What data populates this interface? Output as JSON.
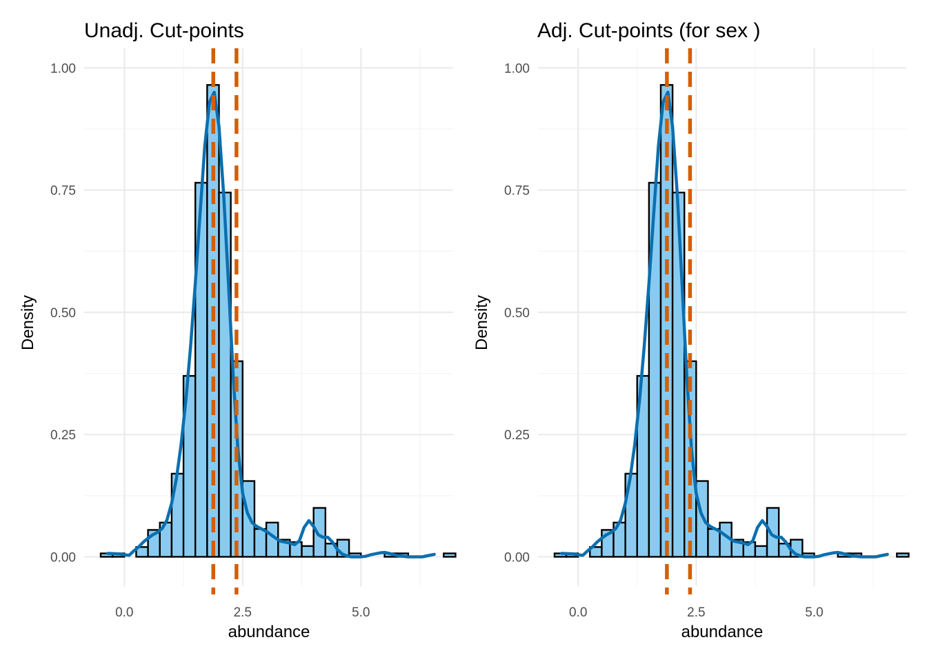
{
  "colors": {
    "bar_fill": "#89cbf0",
    "bar_stroke": "#000000",
    "density_line": "#0b6faf",
    "cut_line": "#d55e00",
    "grid": "#ebebeb"
  },
  "chart_data": [
    {
      "type": "histogram",
      "title": "Unadj. Cut-points",
      "xlabel": "abundance",
      "ylabel": "Density",
      "xlim": [
        -0.85,
        6.95
      ],
      "ylim": [
        -0.06,
        1.04
      ],
      "x_ticks": [
        0,
        2.5,
        5
      ],
      "x_tick_labels": [
        "0.0",
        "2.5",
        "5.0"
      ],
      "y_ticks": [
        0,
        0.25,
        0.5,
        0.75,
        1
      ],
      "y_tick_labels": [
        "0.00",
        "0.25",
        "0.50",
        "0.75",
        "1.00"
      ],
      "grid": true,
      "bins": {
        "width": 0.25,
        "start": -0.5,
        "densities": [
          0.007,
          0.007,
          0.0,
          0.02,
          0.055,
          0.07,
          0.17,
          0.37,
          0.765,
          0.965,
          0.745,
          0.4,
          0.155,
          0.057,
          0.07,
          0.035,
          0.03,
          0.022,
          0.1,
          0.027,
          0.035,
          0.007,
          0.0,
          0.0,
          0.007,
          0.007,
          0.0,
          0.0,
          0.0,
          0.007
        ]
      },
      "density_curve": {
        "x": [
          -0.35,
          -0.1,
          0.0,
          0.1,
          0.2,
          0.3,
          0.4,
          0.5,
          0.6,
          0.7,
          0.8,
          0.9,
          1.0,
          1.1,
          1.2,
          1.3,
          1.4,
          1.5,
          1.6,
          1.7,
          1.8,
          1.9,
          2.0,
          2.1,
          2.2,
          2.3,
          2.4,
          2.5,
          2.6,
          2.7,
          2.8,
          2.9,
          3.0,
          3.1,
          3.2,
          3.3,
          3.4,
          3.5,
          3.6,
          3.7,
          3.8,
          3.9,
          4.0,
          4.1,
          4.2,
          4.3,
          4.4,
          4.5,
          4.6,
          4.7,
          4.8,
          4.9,
          5.0,
          5.1,
          5.2,
          5.3,
          5.4,
          5.5,
          5.6,
          5.7,
          5.8,
          5.9,
          6.0,
          6.1,
          6.2,
          6.3,
          6.4,
          6.55
        ],
        "y": [
          0.007,
          0.006,
          0.004,
          0.003,
          0.012,
          0.02,
          0.03,
          0.038,
          0.045,
          0.05,
          0.058,
          0.075,
          0.11,
          0.16,
          0.23,
          0.32,
          0.43,
          0.56,
          0.7,
          0.84,
          0.93,
          0.95,
          0.88,
          0.74,
          0.56,
          0.37,
          0.22,
          0.13,
          0.09,
          0.07,
          0.062,
          0.057,
          0.052,
          0.045,
          0.038,
          0.032,
          0.03,
          0.028,
          0.025,
          0.033,
          0.06,
          0.074,
          0.062,
          0.045,
          0.04,
          0.04,
          0.03,
          0.015,
          0.006,
          0.002,
          0.0,
          0.0,
          0.0,
          0.001,
          0.004,
          0.006,
          0.008,
          0.009,
          0.007,
          0.004,
          0.002,
          0.001,
          0.0,
          0.0,
          0.0,
          0.0,
          0.002,
          0.005
        ]
      },
      "cut_points": [
        1.88,
        2.37
      ]
    },
    {
      "type": "histogram",
      "title": "Adj. Cut-points (for sex )",
      "xlabel": "abundance",
      "ylabel": "Density",
      "xlim": [
        -0.85,
        6.95
      ],
      "ylim": [
        -0.06,
        1.04
      ],
      "x_ticks": [
        0,
        2.5,
        5
      ],
      "x_tick_labels": [
        "0.0",
        "2.5",
        "5.0"
      ],
      "y_ticks": [
        0,
        0.25,
        0.5,
        0.75,
        1
      ],
      "y_tick_labels": [
        "0.00",
        "0.25",
        "0.50",
        "0.75",
        "1.00"
      ],
      "grid": true,
      "bins": {
        "width": 0.25,
        "start": -0.5,
        "densities": [
          0.007,
          0.007,
          0.0,
          0.02,
          0.055,
          0.07,
          0.17,
          0.37,
          0.765,
          0.965,
          0.745,
          0.4,
          0.155,
          0.057,
          0.07,
          0.035,
          0.03,
          0.022,
          0.1,
          0.027,
          0.035,
          0.007,
          0.0,
          0.0,
          0.007,
          0.007,
          0.0,
          0.0,
          0.0,
          0.007
        ]
      },
      "density_curve": {
        "x": [
          -0.35,
          -0.1,
          0.0,
          0.1,
          0.2,
          0.3,
          0.4,
          0.5,
          0.6,
          0.7,
          0.8,
          0.9,
          1.0,
          1.1,
          1.2,
          1.3,
          1.4,
          1.5,
          1.6,
          1.7,
          1.8,
          1.9,
          2.0,
          2.1,
          2.2,
          2.3,
          2.4,
          2.5,
          2.6,
          2.7,
          2.8,
          2.9,
          3.0,
          3.1,
          3.2,
          3.3,
          3.4,
          3.5,
          3.6,
          3.7,
          3.8,
          3.9,
          4.0,
          4.1,
          4.2,
          4.3,
          4.4,
          4.5,
          4.6,
          4.7,
          4.8,
          4.9,
          5.0,
          5.1,
          5.2,
          5.3,
          5.4,
          5.5,
          5.6,
          5.7,
          5.8,
          5.9,
          6.0,
          6.1,
          6.2,
          6.3,
          6.4,
          6.55
        ],
        "y": [
          0.007,
          0.006,
          0.004,
          0.003,
          0.012,
          0.02,
          0.03,
          0.038,
          0.045,
          0.05,
          0.058,
          0.075,
          0.11,
          0.16,
          0.23,
          0.32,
          0.43,
          0.56,
          0.7,
          0.84,
          0.93,
          0.95,
          0.88,
          0.74,
          0.56,
          0.37,
          0.22,
          0.13,
          0.09,
          0.07,
          0.062,
          0.057,
          0.052,
          0.045,
          0.038,
          0.032,
          0.03,
          0.028,
          0.025,
          0.033,
          0.06,
          0.074,
          0.062,
          0.045,
          0.04,
          0.04,
          0.03,
          0.015,
          0.006,
          0.002,
          0.0,
          0.0,
          0.0,
          0.001,
          0.004,
          0.006,
          0.008,
          0.009,
          0.007,
          0.004,
          0.002,
          0.001,
          0.0,
          0.0,
          0.0,
          0.0,
          0.002,
          0.005
        ]
      },
      "cut_points": [
        1.88,
        2.37
      ]
    }
  ]
}
